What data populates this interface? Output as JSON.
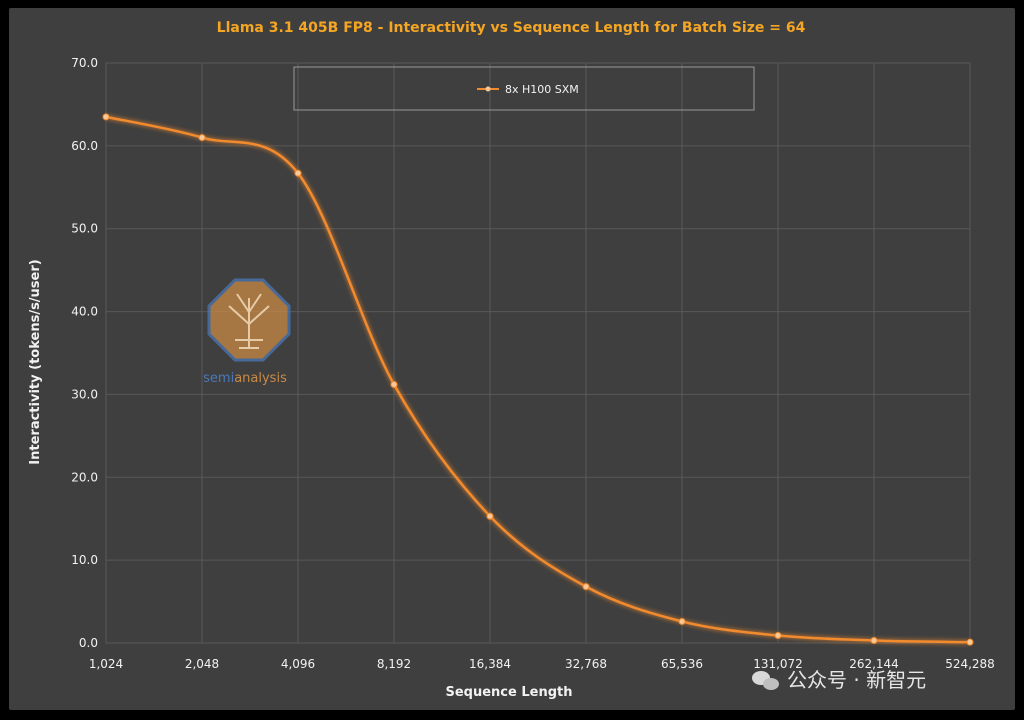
{
  "chart_data": {
    "type": "line",
    "title": "Llama 3.1 405B FP8 - Interactivity vs Sequence Length for Batch Size = 64",
    "xlabel": "Sequence Length",
    "ylabel": "Interactivity (tokens/s/user)",
    "categories": [
      "1,024",
      "2,048",
      "4,096",
      "8,192",
      "16,384",
      "32,768",
      "65,536",
      "131,072",
      "262,144",
      "524,288"
    ],
    "yticks": [
      "0.0",
      "10.0",
      "20.0",
      "30.0",
      "40.0",
      "50.0",
      "60.0",
      "70.0"
    ],
    "ylim": [
      0,
      70
    ],
    "grid": true,
    "legend_position": "top",
    "series": [
      {
        "name": "8x H100 SXM",
        "color": "#f28a2e",
        "values": [
          63.5,
          61.0,
          56.7,
          31.2,
          15.3,
          6.8,
          2.6,
          0.9,
          0.3,
          0.1
        ]
      }
    ]
  },
  "watermark": {
    "logo_text_part1": "semi",
    "logo_text_part2": "analysis",
    "footer": "公众号 · 新智元"
  }
}
